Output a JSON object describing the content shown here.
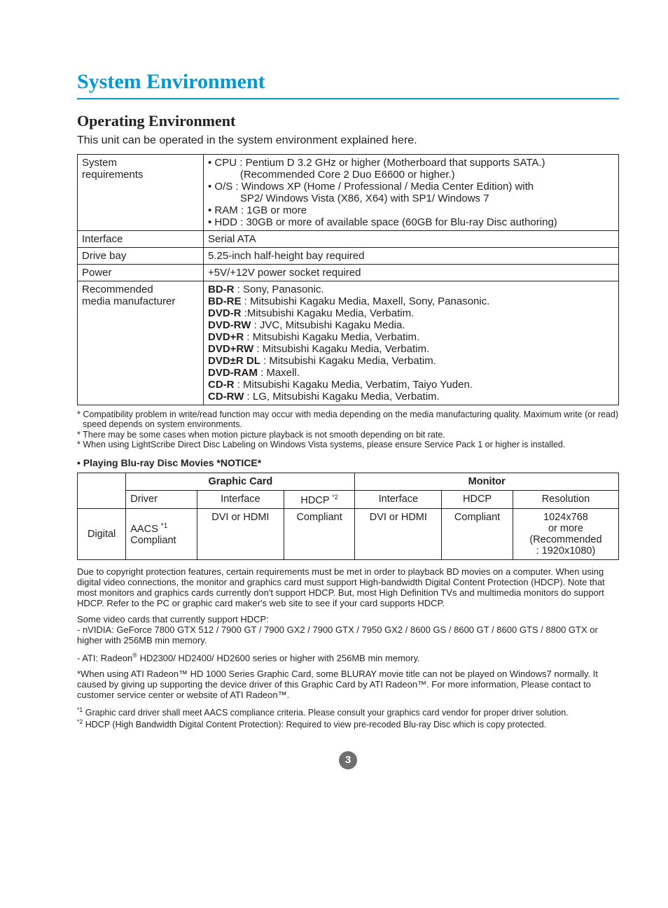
{
  "colors": {
    "title": "#0099d8",
    "hr": "#0099d8",
    "text": "#231f20",
    "pagebg": "#6f6f6f"
  },
  "title": "System Environment",
  "section": "Operating Environment",
  "intro": "This unit can be operated in the system environment explained here.",
  "spec": {
    "rows": [
      {
        "label": "System requirements",
        "html": "• CPU : Pentium D 3.2 GHz or higher (Motherboard that supports SATA.)<br>&nbsp;&nbsp;&nbsp;&nbsp;&nbsp;&nbsp;&nbsp;&nbsp;&nbsp;&nbsp;&nbsp;(Recommended Core 2 Duo E6600 or higher.)<br>• O/S : Windows XP (Home / Professional / Media Center Edition) with<br>&nbsp;&nbsp;&nbsp;&nbsp;&nbsp;&nbsp;&nbsp;&nbsp;&nbsp;&nbsp;&nbsp;SP2/ Windows Vista (X86, X64) with SP1/ Windows 7<br>• RAM : 1GB or more<br>• HDD : 30GB or more of available space (60GB for Blu-ray Disc authoring)"
      },
      {
        "label": "Interface",
        "html": "Serial ATA"
      },
      {
        "label": "Drive bay",
        "html": "5.25-inch half-height bay required"
      },
      {
        "label": "Power",
        "html": "+5V/+12V power socket required"
      },
      {
        "label": "Recommended media manufacturer",
        "html": "<b>BD-R</b> : Sony, Panasonic.<br><b>BD-RE</b> : Mitsubishi Kagaku Media, Maxell, Sony, Panasonic.<br><b>DVD-R</b> :Mitsubishi Kagaku Media, Verbatim.<br><b>DVD-RW</b> : JVC, Mitsubishi Kagaku Media.<br><b>DVD+R</b> : Mitsubishi Kagaku Media, Verbatim.<br><b>DVD+RW</b> : Mitsubishi Kagaku Media, Verbatim.<br><b>DVD±R DL</b> : Mitsubishi Kagaku Media, Verbatim.<br><b>DVD-RAM</b> : Maxell.<br><b>CD-R</b> : Mitsubishi Kagaku Media, Verbatim, Taiyo Yuden.<br><b>CD-RW</b> : LG, Mitsubishi Kagaku Media, Verbatim."
      }
    ]
  },
  "notes": [
    "* Compatibility problem in write/read function may occur with media depending on the media manufacturing quality. Maximum write (or read) speed depends on system environments.",
    "* There may be some cases when motion picture playback is not smooth depending on bit rate.",
    "* When using LightScribe Direct Disc Labeling on Windows Vista systems, please ensure Service Pack 1 or higher is installed."
  ],
  "notice_head": "• Playing Blu-ray Disc Movies  *NOTICE*",
  "gc": {
    "h1_blank": "",
    "h1_gc": "Graphic Card",
    "h1_mon": "Monitor",
    "h2": [
      "",
      "Driver",
      "Interface",
      "HDCP *2",
      "Interface",
      "HDCP",
      "Resolution"
    ],
    "row_label": "Digital",
    "cells": {
      "driver": "AACS *1 Compliant",
      "gc_if": "DVI or HDMI",
      "gc_hdcp": "Compliant",
      "mon_if": "DVI or HDMI",
      "mon_hdcp": "Compliant",
      "res": "1024x768 or more (Recommended : 1920x1080)"
    }
  },
  "body": [
    "Due to copyright protection features, certain requirements must be met in order to playback BD movies on a computer. When using digital video connections, the monitor and graphics card must support High-bandwidth Digital Content Protection (HDCP). Note that most monitors and graphics cards currently don't support HDCP. But, most High Definition TVs and multimedia monitors do support HDCP. Refer to the PC or graphic card maker's web site to see if your card supports HDCP.",
    "Some video cards that currently support HDCP:<br>- nVIDIA: GeForce 7800 GTX 512 / 7900 GT / 7900 GX2 / 7900 GTX / 7950 GX2 / 8600 GS / 8600 GT / 8600 GTS / 8800 GTX or higher with 256MB min memory.",
    "- ATI: Radeon<sup>®</sup> HD2300/ HD2400/ HD2600 series or higher with 256MB min memory.",
    "*When using ATI Radeon™ HD 1000 Series Graphic Card, some BLURAY movie title can not be played on Windows7 normally. It caused by giving up supporting the device driver of this Graphic Card by ATI Radeon™. For more information, Please contact to customer service center or website of ATI Radeon™."
  ],
  "footnotes": [
    "<sup>*1</sup> Graphic card driver shall meet AACS compliance criteria. Please consult your graphics card vendor for proper driver solution.",
    "<sup>*2</sup> HDCP (High Bandwidth Digital Content Protection): Required to view pre-recoded Blu-ray Disc which is copy protected."
  ],
  "pagenum": "3"
}
